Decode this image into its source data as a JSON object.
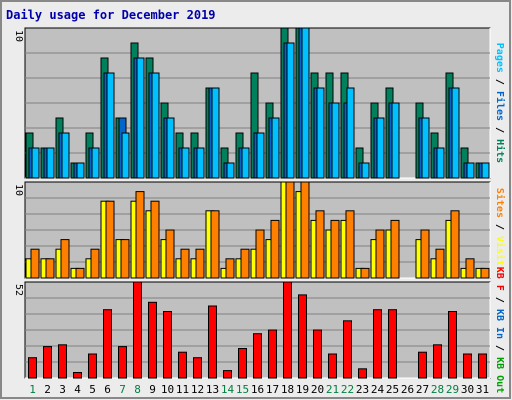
{
  "chart_data": {
    "type": "bar",
    "title": "Daily usage for December 2019",
    "categories": [
      "1",
      "2",
      "3",
      "4",
      "5",
      "6",
      "7",
      "8",
      "9",
      "10",
      "11",
      "12",
      "13",
      "14",
      "15",
      "16",
      "17",
      "18",
      "19",
      "20",
      "21",
      "22",
      "23",
      "24",
      "25",
      "26",
      "27",
      "28",
      "29",
      "30",
      "31"
    ],
    "weekend_days": [
      "1",
      "7",
      "8",
      "14",
      "15",
      "21",
      "22",
      "28",
      "29"
    ],
    "panels": [
      {
        "id": "pages-files-hits",
        "y_max_label": "10",
        "y_max": 10,
        "side_label": [
          {
            "text": "Pages",
            "color": "#00c0ff"
          },
          {
            "text": " / ",
            "color": "#000000"
          },
          {
            "text": "Files",
            "color": "#0066cc"
          },
          {
            "text": " / ",
            "color": "#000000"
          },
          {
            "text": "Hits",
            "color": "#00805c"
          }
        ],
        "series": [
          {
            "name": "Hits",
            "color": "#00805c",
            "values": [
              3,
              2,
              4,
              1,
              3,
              8,
              4,
              9,
              8,
              5,
              3,
              3,
              6,
              2,
              3,
              7,
              5,
              10,
              10,
              7,
              7,
              7,
              2,
              5,
              6,
              0,
              5,
              3,
              7,
              2,
              1
            ]
          },
          {
            "name": "Files",
            "color": "#0066cc",
            "values": [
              2,
              2,
              3,
              1,
              2,
              7,
              4,
              8,
              7,
              4,
              2,
              2,
              6,
              1,
              2,
              3,
              4,
              9,
              10,
              6,
              5,
              5,
              1,
              4,
              5,
              0,
              4,
              2,
              6,
              1,
              1
            ]
          },
          {
            "name": "Pages",
            "color": "#00c0ff",
            "values": [
              2,
              2,
              3,
              1,
              2,
              7,
              3,
              8,
              7,
              4,
              2,
              2,
              6,
              1,
              2,
              3,
              4,
              9,
              10,
              6,
              5,
              6,
              1,
              4,
              5,
              0,
              4,
              2,
              6,
              1,
              1
            ]
          }
        ]
      },
      {
        "id": "visits-sites",
        "y_max_label": "10",
        "y_max": 10,
        "side_label": [
          {
            "text": "Sites",
            "color": "#ff8000"
          },
          {
            "text": " / ",
            "color": "#000000"
          },
          {
            "text": "Visits",
            "color": "#ffff00"
          }
        ],
        "series": [
          {
            "name": "Visits",
            "color": "#ffff00",
            "values": [
              2,
              2,
              3,
              1,
              2,
              8,
              4,
              8,
              7,
              4,
              2,
              2,
              7,
              1,
              2,
              3,
              4,
              10,
              9,
              6,
              5,
              6,
              1,
              4,
              5,
              0,
              4,
              2,
              6,
              1,
              1
            ]
          },
          {
            "name": "Sites",
            "color": "#ff8000",
            "values": [
              3,
              2,
              4,
              1,
              3,
              8,
              4,
              9,
              8,
              5,
              3,
              3,
              7,
              2,
              3,
              5,
              6,
              10,
              10,
              7,
              6,
              7,
              1,
              5,
              6,
              0,
              5,
              3,
              7,
              2,
              1
            ]
          }
        ]
      },
      {
        "id": "kbytes",
        "y_max_label": "52",
        "y_max": 52,
        "side_label": [
          {
            "text": "KB F",
            "color": "#ff0000"
          },
          {
            "text": " / ",
            "color": "#000000"
          },
          {
            "text": "KB In",
            "color": "#0066cc"
          },
          {
            "text": " / ",
            "color": "#000000"
          },
          {
            "text": "KB Out",
            "color": "#00a000"
          }
        ],
        "series": [
          {
            "name": "KB F",
            "color": "#ff0000",
            "values": [
              11,
              17,
              18,
              3,
              13,
              37,
              17,
              52,
              41,
              36,
              14,
              11,
              39,
              4,
              16,
              24,
              26,
              53,
              45,
              26,
              13,
              31,
              5,
              37,
              37,
              0,
              14,
              18,
              36,
              13,
              13
            ]
          }
        ]
      }
    ]
  }
}
